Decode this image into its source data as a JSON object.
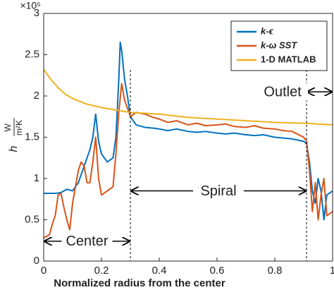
{
  "chart_data": {
    "type": "line",
    "xlabel": "Normalized radius from the center",
    "ylabel": "h",
    "ylabel_unit_numerator": "W",
    "ylabel_unit_denominator": "m²K",
    "y_multiplier": "×10⁵",
    "xlim": [
      0,
      1
    ],
    "xticks": [
      0,
      0.2,
      0.4,
      0.6,
      0.8,
      1
    ],
    "ylim": [
      0,
      3
    ],
    "yticks": [
      0,
      0.5,
      1,
      1.5,
      2,
      2.5,
      3
    ],
    "legend": "top-right",
    "series": [
      {
        "name": "k-ϵ",
        "color": "#0072BD",
        "x": [
          0,
          0.02,
          0.04,
          0.06,
          0.08,
          0.1,
          0.12,
          0.14,
          0.16,
          0.17,
          0.18,
          0.19,
          0.2,
          0.22,
          0.24,
          0.25,
          0.26,
          0.265,
          0.27,
          0.28,
          0.29,
          0.3,
          0.32,
          0.35,
          0.38,
          0.4,
          0.43,
          0.46,
          0.5,
          0.53,
          0.56,
          0.6,
          0.63,
          0.66,
          0.7,
          0.73,
          0.76,
          0.8,
          0.83,
          0.86,
          0.9,
          0.91,
          0.92,
          0.93,
          0.94,
          0.95,
          0.96,
          0.97,
          0.98,
          1
        ],
        "values": [
          0.82,
          0.82,
          0.82,
          0.83,
          0.87,
          0.85,
          0.95,
          1.15,
          1.35,
          1.5,
          1.78,
          1.45,
          1.3,
          1.2,
          1.25,
          1.5,
          2.2,
          2.65,
          2.55,
          2.2,
          2.0,
          1.75,
          1.65,
          1.62,
          1.61,
          1.6,
          1.58,
          1.6,
          1.57,
          1.56,
          1.57,
          1.55,
          1.54,
          1.55,
          1.53,
          1.52,
          1.53,
          1.5,
          1.49,
          1.48,
          1.45,
          1.42,
          1.2,
          0.85,
          0.7,
          1.0,
          0.85,
          0.5,
          0.8,
          0.85
        ]
      },
      {
        "name": "k-ω SST",
        "color": "#D95319",
        "x": [
          0,
          0.02,
          0.03,
          0.04,
          0.05,
          0.06,
          0.07,
          0.08,
          0.09,
          0.1,
          0.12,
          0.13,
          0.14,
          0.15,
          0.16,
          0.17,
          0.18,
          0.19,
          0.2,
          0.22,
          0.24,
          0.25,
          0.26,
          0.27,
          0.28,
          0.29,
          0.3,
          0.32,
          0.35,
          0.38,
          0.4,
          0.43,
          0.46,
          0.5,
          0.53,
          0.56,
          0.6,
          0.63,
          0.66,
          0.7,
          0.73,
          0.76,
          0.8,
          0.83,
          0.86,
          0.9,
          0.91,
          0.92,
          0.93,
          0.94,
          0.95,
          0.96,
          0.97,
          0.98,
          1
        ],
        "values": [
          0.28,
          0.32,
          0.45,
          0.55,
          0.8,
          0.82,
          0.65,
          0.5,
          0.38,
          0.7,
          1.1,
          1.2,
          1.15,
          0.95,
          0.95,
          1.2,
          1.5,
          1.0,
          0.8,
          0.85,
          0.9,
          1.3,
          1.8,
          2.15,
          1.95,
          1.85,
          1.75,
          1.8,
          1.78,
          1.74,
          1.72,
          1.68,
          1.7,
          1.65,
          1.67,
          1.64,
          1.65,
          1.66,
          1.63,
          1.62,
          1.64,
          1.61,
          1.6,
          1.58,
          1.57,
          1.5,
          1.45,
          1.1,
          0.6,
          0.95,
          0.5,
          0.8,
          1.0,
          0.55,
          0.6
        ]
      },
      {
        "name": "1-D MATLAB",
        "color": "#EDB120",
        "x": [
          0,
          0.025,
          0.05,
          0.075,
          0.1,
          0.15,
          0.2,
          0.25,
          0.3,
          0.4,
          0.5,
          0.6,
          0.7,
          0.8,
          0.9,
          1
        ],
        "values": [
          2.32,
          2.2,
          2.1,
          2.02,
          1.97,
          1.9,
          1.86,
          1.83,
          1.8,
          1.78,
          1.74,
          1.72,
          1.7,
          1.68,
          1.67,
          1.65
        ]
      }
    ],
    "regions": [
      {
        "label": "Center",
        "x": [
          0,
          0.3
        ],
        "y": 0.24
      },
      {
        "label": "Spiral",
        "x": [
          0.3,
          0.91
        ],
        "y": 0.85
      },
      {
        "label": "Outlet",
        "x": [
          0.91,
          1
        ],
        "y": 2.05
      }
    ]
  }
}
